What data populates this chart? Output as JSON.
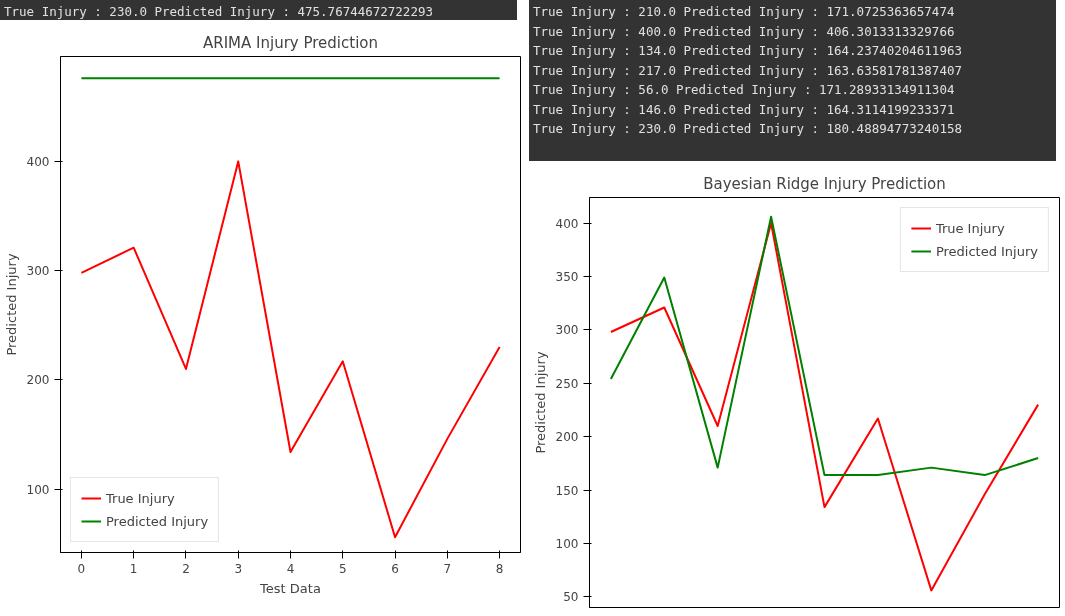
{
  "chart_data": [
    {
      "type": "line",
      "title": "ARIMA Injury Prediction",
      "xlabel": "Test Data",
      "ylabel": "Predicted Injury",
      "annotations": [
        "True Injury : 230.0 Predicted Injury : 475.76744672722293"
      ],
      "x": [
        0,
        1,
        2,
        3,
        4,
        5,
        6,
        7,
        8
      ],
      "series": [
        {
          "name": "True Injury",
          "color": "#ff0000",
          "values": [
            298,
            321,
            210,
            400,
            134,
            217,
            56,
            146,
            230
          ]
        },
        {
          "name": "Predicted Injury",
          "color": "#008000",
          "values": [
            476,
            476,
            476,
            476,
            476,
            476,
            476,
            476,
            476
          ]
        }
      ],
      "xlim": [
        -0.4,
        8.4
      ],
      "ylim": [
        42,
        496
      ],
      "xticks": [
        0,
        1,
        2,
        3,
        4,
        5,
        6,
        7,
        8
      ],
      "yticks": [
        100,
        200,
        300,
        400
      ],
      "grid": false,
      "legend": "bottom left"
    },
    {
      "type": "line",
      "title": "Bayesian Ridge Injury Prediction",
      "ylabel": "Predicted Injury",
      "annotations": [
        "True Injury : 210.0 Predicted Injury : 171.0725363657474",
        "True Injury : 400.0 Predicted Injury : 406.3013313329766",
        "True Injury : 134.0 Predicted Injury : 164.23740204611963",
        "True Injury : 217.0 Predicted Injury : 163.63581781387407",
        "True Injury : 56.0 Predicted Injury : 171.28933134911304",
        "True Injury : 146.0 Predicted Injury : 164.3114199233371",
        "True Injury : 230.0 Predicted Injury : 180.48894773240158"
      ],
      "categories": [
        null,
        null,
        null,
        null,
        null,
        null,
        null,
        null,
        null
      ],
      "series": [
        {
          "name": "True Injury",
          "color": "#ff0000",
          "values": [
            298,
            321,
            210,
            400,
            134,
            217,
            56,
            146,
            230
          ]
        },
        {
          "name": "Predicted Injury",
          "color": "#008000",
          "values": [
            254,
            349,
            171,
            406,
            164,
            164,
            171,
            164,
            180
          ]
        }
      ],
      "ylim": [
        40,
        424
      ],
      "yticks": [
        50,
        100,
        150,
        200,
        250,
        300,
        350,
        400
      ],
      "tick_labels": "y",
      "grid": false,
      "legend": "top right"
    }
  ]
}
